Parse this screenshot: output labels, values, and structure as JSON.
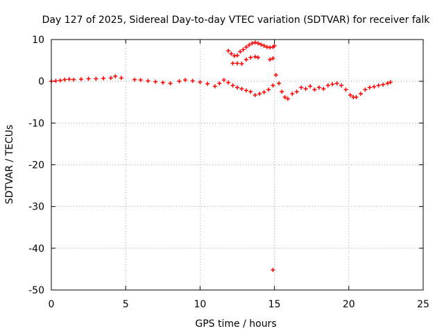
{
  "chart_data": {
    "type": "scatter",
    "title": "Day 127 of 2025, Sidereal Day-to-day VTEC variation (SDTVAR) for receiver falk",
    "xlabel": "GPS time / hours",
    "ylabel": "SDTVAR / TECUs",
    "xlim": [
      0,
      25
    ],
    "ylim": [
      -50,
      10
    ],
    "xticks": [
      0,
      5,
      10,
      15,
      20,
      25
    ],
    "yticks": [
      -50,
      -40,
      -30,
      -20,
      -10,
      0,
      10
    ],
    "xtick_labels": [
      "0",
      "5",
      "10",
      "15",
      "20",
      "25"
    ],
    "ytick_labels": [
      "-50",
      "-40",
      "-30",
      "-20",
      "-10",
      "0",
      "10"
    ],
    "grid": true,
    "marker": "+",
    "color": "#ff0000",
    "series": [
      {
        "name": "main",
        "x": [
          0.0,
          0.3,
          0.6,
          0.9,
          1.2,
          1.5,
          2.0,
          2.5,
          3.0,
          3.5,
          4.0,
          4.3,
          4.7,
          5.6,
          6.0,
          6.5,
          7.0,
          7.5,
          8.0,
          8.6,
          9.0,
          9.5,
          10.0,
          10.5,
          11.0,
          11.3,
          11.6,
          11.9,
          12.2,
          12.5,
          12.8,
          13.1,
          13.4,
          13.7,
          14.0,
          14.3,
          14.6,
          14.9,
          15.1,
          15.3,
          15.5,
          15.7,
          15.9,
          16.2,
          16.5,
          16.8,
          17.1,
          17.4,
          17.7,
          18.0,
          18.3,
          18.6,
          18.9,
          19.2,
          19.5,
          19.8,
          20.1,
          20.3,
          20.5,
          20.8,
          21.1,
          21.4,
          21.7,
          22.0,
          22.3,
          22.6,
          22.8
        ],
        "y": [
          0.0,
          0.1,
          0.2,
          0.4,
          0.5,
          0.4,
          0.5,
          0.6,
          0.6,
          0.7,
          0.8,
          1.2,
          0.8,
          0.4,
          0.3,
          0.1,
          -0.1,
          -0.3,
          -0.5,
          0.0,
          0.3,
          0.1,
          -0.2,
          -0.6,
          -1.2,
          -0.5,
          0.3,
          -0.3,
          -1.0,
          -1.5,
          -1.8,
          -2.2,
          -2.5,
          -3.3,
          -3.0,
          -2.6,
          -2.0,
          -1.0,
          1.5,
          -0.5,
          -2.5,
          -3.8,
          -4.2,
          -3.0,
          -2.5,
          -1.5,
          -1.8,
          -1.2,
          -2.0,
          -1.5,
          -1.8,
          -1.0,
          -0.7,
          -0.5,
          -1.0,
          -2.0,
          -3.3,
          -3.8,
          -3.8,
          -3.0,
          -2.0,
          -1.5,
          -1.3,
          -1.0,
          -0.8,
          -0.5,
          -0.2
        ]
      },
      {
        "name": "upper-arc",
        "x": [
          11.9,
          12.1,
          12.3,
          12.5,
          12.7,
          12.9,
          13.1,
          13.3,
          13.5,
          13.7,
          13.9,
          14.1,
          14.3,
          14.5,
          14.7,
          14.9,
          15.0
        ],
        "y": [
          7.3,
          6.6,
          6.1,
          6.2,
          7.1,
          7.6,
          8.2,
          8.7,
          9.1,
          9.3,
          9.1,
          8.8,
          8.5,
          8.2,
          8.1,
          8.2,
          8.5
        ]
      },
      {
        "name": "mid-arc",
        "x": [
          12.2,
          12.5,
          12.8,
          13.1,
          13.4,
          13.7,
          13.9,
          14.7,
          14.9
        ],
        "y": [
          4.3,
          4.3,
          4.2,
          5.2,
          5.7,
          5.9,
          5.7,
          5.2,
          5.5
        ]
      },
      {
        "name": "outlier",
        "x": [
          14.9
        ],
        "y": [
          -45.2
        ]
      }
    ]
  }
}
